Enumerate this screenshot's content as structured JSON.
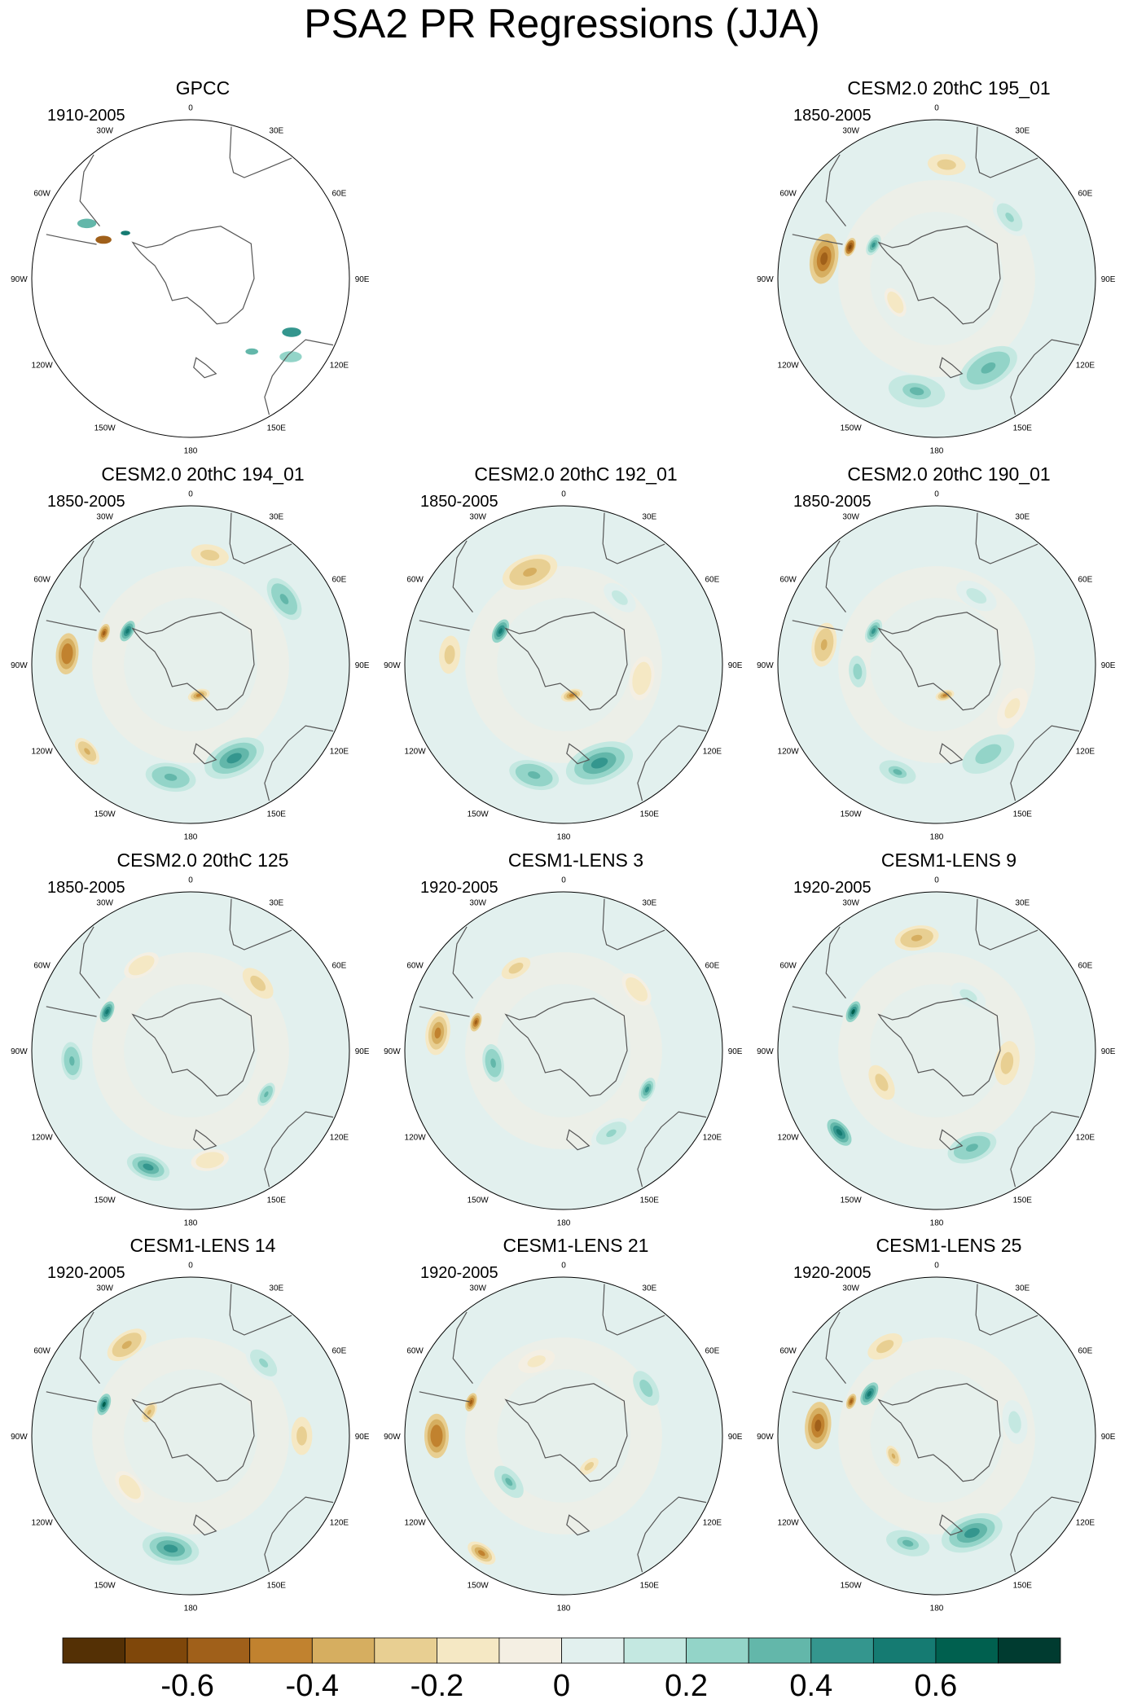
{
  "title": "PSA2 PR Regressions (JJA)",
  "chart_data": {
    "type": "polar-map-panels",
    "title": "PSA2 PR Regressions (JJA)",
    "variable": "PR",
    "season": "JJA",
    "projection": "south polar stereographic",
    "longitude_labels": [
      "0",
      "30E",
      "60E",
      "90E",
      "120E",
      "150E",
      "180",
      "150W",
      "120W",
      "90W",
      "60W",
      "30W"
    ],
    "colorbar": {
      "levels": [
        -0.7,
        -0.6,
        -0.5,
        -0.4,
        -0.3,
        -0.2,
        -0.1,
        0,
        0.1,
        0.2,
        0.3,
        0.4,
        0.5,
        0.6,
        0.7
      ],
      "tick_labels": [
        "-0.6",
        "-0.4",
        "-0.2",
        "0",
        "0.2",
        "0.4",
        "0.6"
      ],
      "tick_values": [
        -0.6,
        -0.4,
        -0.2,
        0,
        0.2,
        0.4,
        0.6
      ],
      "colors": [
        "#543005",
        "#7f470a",
        "#a0601a",
        "#c1822f",
        "#d6ae60",
        "#e8cf92",
        "#f5e8c4",
        "#f4efe3",
        "#e2f0ee",
        "#c4e8e1",
        "#93d4c8",
        "#63b7aa",
        "#34968e",
        "#157b72",
        "#00604f",
        "#003b30"
      ]
    },
    "panels": [
      {
        "id": "gpcc",
        "title": "GPCC",
        "period": "1910-2005",
        "data_coverage": "land only",
        "anomalies": []
      },
      {
        "id": "cesm2-195",
        "title": "CESM2.0 20thC 195_01",
        "period": "1850-2005",
        "anomalies": [
          {
            "lon": -80,
            "r": 0.72,
            "value": -0.55,
            "size": 0.16
          },
          {
            "lon": -70,
            "r": 0.58,
            "value": -0.65,
            "size": 0.06
          },
          {
            "lon": -62,
            "r": 0.45,
            "value": 0.45,
            "size": 0.07
          },
          {
            "lon": 5,
            "r": 0.72,
            "value": -0.3,
            "size": 0.12
          },
          {
            "lon": 150,
            "r": 0.65,
            "value": 0.35,
            "size": 0.2
          },
          {
            "lon": -170,
            "r": 0.72,
            "value": 0.3,
            "size": 0.18
          },
          {
            "lon": 50,
            "r": 0.6,
            "value": 0.2,
            "size": 0.14
          },
          {
            "lon": -120,
            "r": 0.3,
            "value": -0.2,
            "size": 0.1
          }
        ]
      },
      {
        "id": "cesm2-194",
        "title": "CESM2.0 20thC 194_01",
        "period": "1850-2005",
        "anomalies": [
          {
            "lon": -85,
            "r": 0.78,
            "value": -0.5,
            "size": 0.13
          },
          {
            "lon": -70,
            "r": 0.58,
            "value": -0.6,
            "size": 0.06
          },
          {
            "lon": -62,
            "r": 0.45,
            "value": 0.55,
            "size": 0.07
          },
          {
            "lon": 10,
            "r": 0.7,
            "value": -0.25,
            "size": 0.12
          },
          {
            "lon": 55,
            "r": 0.72,
            "value": 0.35,
            "size": 0.15
          },
          {
            "lon": 155,
            "r": 0.65,
            "value": 0.4,
            "size": 0.2
          },
          {
            "lon": -170,
            "r": 0.72,
            "value": 0.35,
            "size": 0.16
          },
          {
            "lon": -130,
            "r": 0.85,
            "value": -0.35,
            "size": 0.1
          },
          {
            "lon": 165,
            "r": 0.2,
            "value": -0.45,
            "size": 0.07
          }
        ]
      },
      {
        "id": "cesm2-192",
        "title": "CESM2.0 20thC 192_01",
        "period": "1850-2005",
        "anomalies": [
          {
            "lon": -20,
            "r": 0.62,
            "value": -0.35,
            "size": 0.18
          },
          {
            "lon": -85,
            "r": 0.72,
            "value": -0.3,
            "size": 0.12
          },
          {
            "lon": -62,
            "r": 0.45,
            "value": 0.5,
            "size": 0.08
          },
          {
            "lon": 160,
            "r": 0.66,
            "value": 0.4,
            "size": 0.22
          },
          {
            "lon": -165,
            "r": 0.72,
            "value": 0.35,
            "size": 0.16
          },
          {
            "lon": 100,
            "r": 0.5,
            "value": -0.2,
            "size": 0.14
          },
          {
            "lon": 165,
            "r": 0.2,
            "value": -0.45,
            "size": 0.07
          },
          {
            "lon": 40,
            "r": 0.55,
            "value": 0.15,
            "size": 0.12
          }
        ]
      },
      {
        "id": "cesm2-190",
        "title": "CESM2.0 20thC 190_01",
        "period": "1850-2005",
        "anomalies": [
          {
            "lon": -80,
            "r": 0.72,
            "value": -0.35,
            "size": 0.14
          },
          {
            "lon": -62,
            "r": 0.45,
            "value": 0.45,
            "size": 0.08
          },
          {
            "lon": -95,
            "r": 0.5,
            "value": 0.25,
            "size": 0.1
          },
          {
            "lon": 150,
            "r": 0.65,
            "value": 0.25,
            "size": 0.18
          },
          {
            "lon": -160,
            "r": 0.72,
            "value": 0.3,
            "size": 0.12
          },
          {
            "lon": 30,
            "r": 0.5,
            "value": 0.15,
            "size": 0.14
          },
          {
            "lon": 120,
            "r": 0.55,
            "value": -0.15,
            "size": 0.14
          },
          {
            "lon": 165,
            "r": 0.2,
            "value": -0.45,
            "size": 0.06
          }
        ]
      },
      {
        "id": "cesm2-125",
        "title": "CESM2.0 20thC 125",
        "period": "1850-2005",
        "anomalies": [
          {
            "lon": -65,
            "r": 0.58,
            "value": 0.55,
            "size": 0.07
          },
          {
            "lon": -95,
            "r": 0.75,
            "value": 0.35,
            "size": 0.12
          },
          {
            "lon": -160,
            "r": 0.78,
            "value": 0.4,
            "size": 0.14
          },
          {
            "lon": 45,
            "r": 0.6,
            "value": -0.25,
            "size": 0.12
          },
          {
            "lon": 120,
            "r": 0.55,
            "value": 0.35,
            "size": 0.08
          },
          {
            "lon": -30,
            "r": 0.62,
            "value": -0.2,
            "size": 0.12
          },
          {
            "lon": 170,
            "r": 0.7,
            "value": -0.2,
            "size": 0.12
          }
        ]
      },
      {
        "id": "lens-3",
        "title": "CESM1-LENS 3",
        "period": "1920-2005",
        "anomalies": [
          {
            "lon": -82,
            "r": 0.8,
            "value": -0.45,
            "size": 0.14
          },
          {
            "lon": -72,
            "r": 0.58,
            "value": -0.6,
            "size": 0.06
          },
          {
            "lon": -100,
            "r": 0.45,
            "value": 0.35,
            "size": 0.12
          },
          {
            "lon": 115,
            "r": 0.58,
            "value": 0.45,
            "size": 0.08
          },
          {
            "lon": 50,
            "r": 0.6,
            "value": -0.2,
            "size": 0.12
          },
          {
            "lon": -30,
            "r": 0.6,
            "value": -0.25,
            "size": 0.1
          },
          {
            "lon": 150,
            "r": 0.6,
            "value": 0.2,
            "size": 0.14
          }
        ]
      },
      {
        "id": "lens-9",
        "title": "CESM1-LENS 9",
        "period": "1920-2005",
        "anomalies": [
          {
            "lon": -10,
            "r": 0.72,
            "value": -0.35,
            "size": 0.14
          },
          {
            "lon": -65,
            "r": 0.58,
            "value": 0.6,
            "size": 0.07
          },
          {
            "lon": -130,
            "r": 0.8,
            "value": 0.5,
            "size": 0.1
          },
          {
            "lon": 100,
            "r": 0.45,
            "value": -0.3,
            "size": 0.14
          },
          {
            "lon": 160,
            "r": 0.65,
            "value": 0.35,
            "size": 0.16
          },
          {
            "lon": -120,
            "r": 0.4,
            "value": -0.25,
            "size": 0.12
          },
          {
            "lon": 30,
            "r": 0.4,
            "value": 0.15,
            "size": 0.12
          }
        ]
      },
      {
        "id": "lens-14",
        "title": "CESM1-LENS 14",
        "period": "1920-2005",
        "anomalies": [
          {
            "lon": -35,
            "r": 0.7,
            "value": -0.35,
            "size": 0.14
          },
          {
            "lon": -70,
            "r": 0.58,
            "value": 0.6,
            "size": 0.07
          },
          {
            "lon": 90,
            "r": 0.7,
            "value": -0.3,
            "size": 0.12
          },
          {
            "lon": -170,
            "r": 0.72,
            "value": 0.45,
            "size": 0.18
          },
          {
            "lon": -60,
            "r": 0.3,
            "value": -0.35,
            "size": 0.07
          },
          {
            "lon": -130,
            "r": 0.5,
            "value": -0.2,
            "size": 0.12
          },
          {
            "lon": 45,
            "r": 0.65,
            "value": 0.2,
            "size": 0.14
          }
        ]
      },
      {
        "id": "lens-21",
        "title": "CESM1-LENS 21",
        "period": "1920-2005",
        "anomalies": [
          {
            "lon": -90,
            "r": 0.8,
            "value": -0.5,
            "size": 0.14
          },
          {
            "lon": -70,
            "r": 0.62,
            "value": -0.55,
            "size": 0.06
          },
          {
            "lon": -145,
            "r": 0.9,
            "value": -0.45,
            "size": 0.1
          },
          {
            "lon": -130,
            "r": 0.45,
            "value": 0.3,
            "size": 0.12
          },
          {
            "lon": 60,
            "r": 0.6,
            "value": 0.25,
            "size": 0.12
          },
          {
            "lon": 140,
            "r": 0.25,
            "value": -0.3,
            "size": 0.07
          },
          {
            "lon": -20,
            "r": 0.5,
            "value": -0.15,
            "size": 0.12
          }
        ]
      },
      {
        "id": "lens-25",
        "title": "CESM1-LENS 25",
        "period": "1920-2005",
        "anomalies": [
          {
            "lon": -85,
            "r": 0.75,
            "value": -0.55,
            "size": 0.15
          },
          {
            "lon": -68,
            "r": 0.58,
            "value": -0.6,
            "size": 0.05
          },
          {
            "lon": -58,
            "r": 0.5,
            "value": 0.55,
            "size": 0.08
          },
          {
            "lon": -30,
            "r": 0.65,
            "value": -0.3,
            "size": 0.12
          },
          {
            "lon": 160,
            "r": 0.65,
            "value": 0.4,
            "size": 0.2
          },
          {
            "lon": -165,
            "r": 0.7,
            "value": 0.3,
            "size": 0.14
          },
          {
            "lon": -115,
            "r": 0.3,
            "value": -0.35,
            "size": 0.07
          },
          {
            "lon": 80,
            "r": 0.5,
            "value": 0.15,
            "size": 0.14
          }
        ]
      }
    ]
  }
}
